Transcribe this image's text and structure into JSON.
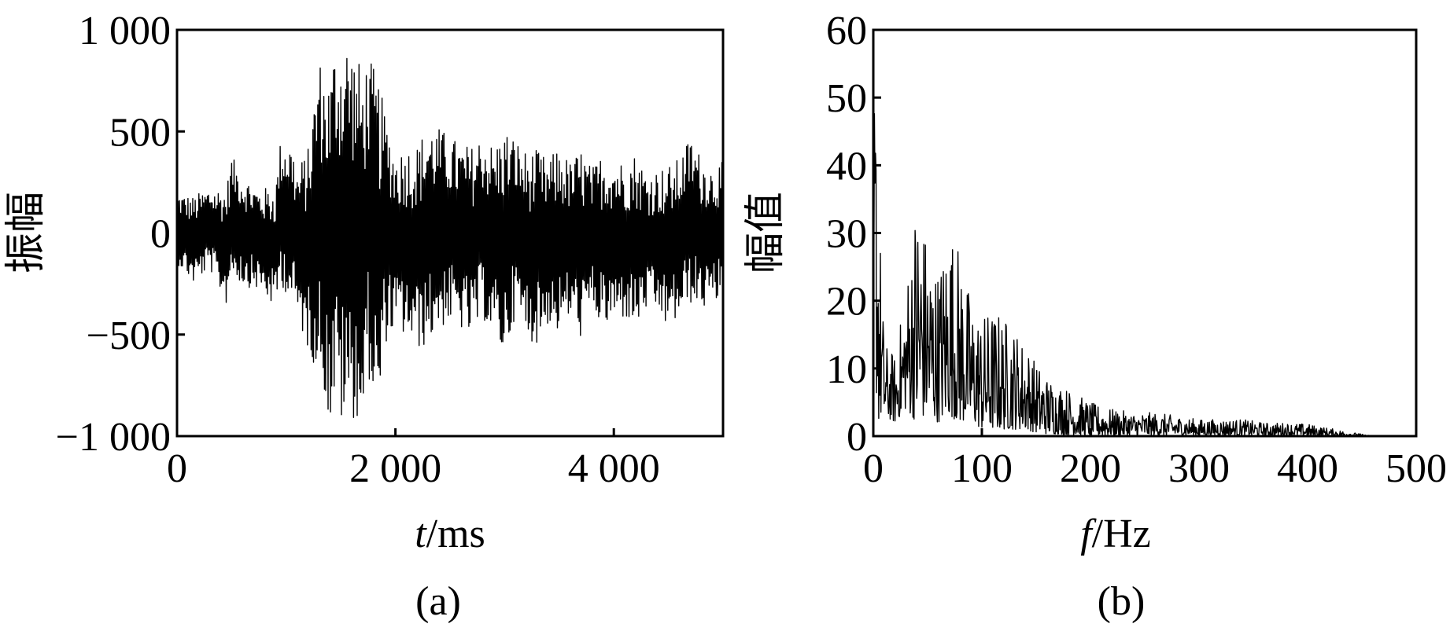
{
  "chart_data": [
    {
      "type": "line",
      "panel_label": "(a)",
      "xlabel_var": "t",
      "xlabel_unit": "/ms",
      "ylabel": "振幅",
      "xlim": [
        0,
        5000
      ],
      "ylim": [
        -1000,
        1000
      ],
      "x_ticks": [
        0,
        2000,
        4000
      ],
      "x_tick_labels": [
        "0",
        "2 000",
        "4 000"
      ],
      "y_ticks": [
        1000,
        500,
        0,
        -500,
        -1000
      ],
      "y_tick_labels": [
        "1 000",
        "500",
        "0",
        "−500",
        "−1 000"
      ],
      "grid": false,
      "line_color": "#000000",
      "series": [
        {
          "x": [
            0,
            150,
            300,
            450,
            500,
            600,
            750,
            900,
            950,
            1050,
            1100,
            1200,
            1300,
            1330,
            1400,
            1450,
            1500,
            1550,
            1600,
            1700,
            1750,
            1850,
            1900,
            2000,
            2100,
            2200,
            2300,
            2400,
            2500,
            2600,
            2700,
            2800,
            2900,
            3000,
            3100,
            3200,
            3300,
            3400,
            3500,
            3600,
            3700,
            3800,
            3900,
            4000,
            4100,
            4200,
            4300,
            4400,
            4500,
            4600,
            4700,
            4800,
            4900,
            5000
          ],
          "envelope_max": [
            200,
            180,
            230,
            220,
            380,
            290,
            220,
            230,
            470,
            450,
            320,
            420,
            880,
            820,
            780,
            960,
            950,
            985,
            940,
            800,
            880,
            750,
            600,
            400,
            430,
            440,
            540,
            520,
            480,
            440,
            430,
            500,
            430,
            520,
            470,
            400,
            410,
            360,
            430,
            350,
            420,
            320,
            400,
            380,
            350,
            400,
            300,
            320,
            330,
            370,
            480,
            380,
            330,
            350
          ],
          "envelope_min": [
            -150,
            -250,
            -180,
            -350,
            -200,
            -260,
            -280,
            -380,
            -250,
            -350,
            -420,
            -580,
            -700,
            -720,
            -980,
            -820,
            -950,
            -980,
            -900,
            -980,
            -700,
            -960,
            -550,
            -480,
            -520,
            -580,
            -550,
            -470,
            -450,
            -480,
            -530,
            -420,
            -520,
            -620,
            -400,
            -520,
            -550,
            -450,
            -500,
            -420,
            -520,
            -380,
            -480,
            -450,
            -420,
            -480,
            -380,
            -400,
            -480,
            -420,
            -350,
            -380,
            -360,
            -320
          ]
        }
      ]
    },
    {
      "type": "line",
      "panel_label": "(b)",
      "xlabel_var": "f",
      "xlabel_unit": "/Hz",
      "ylabel": "幅值",
      "xlim": [
        0,
        500
      ],
      "ylim": [
        0,
        60
      ],
      "x_ticks": [
        0,
        100,
        200,
        300,
        400,
        500
      ],
      "x_tick_labels": [
        "0",
        "100",
        "200",
        "300",
        "400",
        "500"
      ],
      "y_ticks": [
        60,
        50,
        40,
        30,
        20,
        10,
        0
      ],
      "y_tick_labels": [
        "60",
        "50",
        "40",
        "30",
        "20",
        "10",
        "0"
      ],
      "grid": false,
      "line_color": "#000000",
      "series": [
        {
          "x": [
            0,
            2,
            5,
            10,
            20,
            30,
            40,
            50,
            60,
            70,
            80,
            90,
            100,
            110,
            120,
            130,
            140,
            150,
            160,
            170,
            180,
            200,
            220,
            240,
            260,
            280,
            300,
            320,
            340,
            360,
            380,
            400,
            420,
            440,
            450,
            460,
            480,
            500
          ],
          "envelope_max": [
            52,
            58,
            36,
            14,
            12,
            22,
            37,
            29,
            25,
            32,
            28,
            20,
            18,
            19,
            18,
            16,
            14,
            11,
            9,
            8,
            7,
            5,
            4,
            3.5,
            3.5,
            3,
            2.5,
            2.5,
            2.5,
            2,
            2,
            1.8,
            1.2,
            0.6,
            0.3,
            0,
            0,
            0
          ],
          "envelope_min": [
            0,
            8,
            2,
            3,
            2,
            4,
            2,
            3,
            2,
            3,
            2,
            2,
            1,
            1,
            1,
            1,
            1,
            0.5,
            0.3,
            0.3,
            0.2,
            0.1,
            0.1,
            0.1,
            0.1,
            0.1,
            0.1,
            0.1,
            0.1,
            0.1,
            0.05,
            0.05,
            0,
            0,
            0,
            0,
            0,
            0
          ]
        }
      ]
    }
  ]
}
